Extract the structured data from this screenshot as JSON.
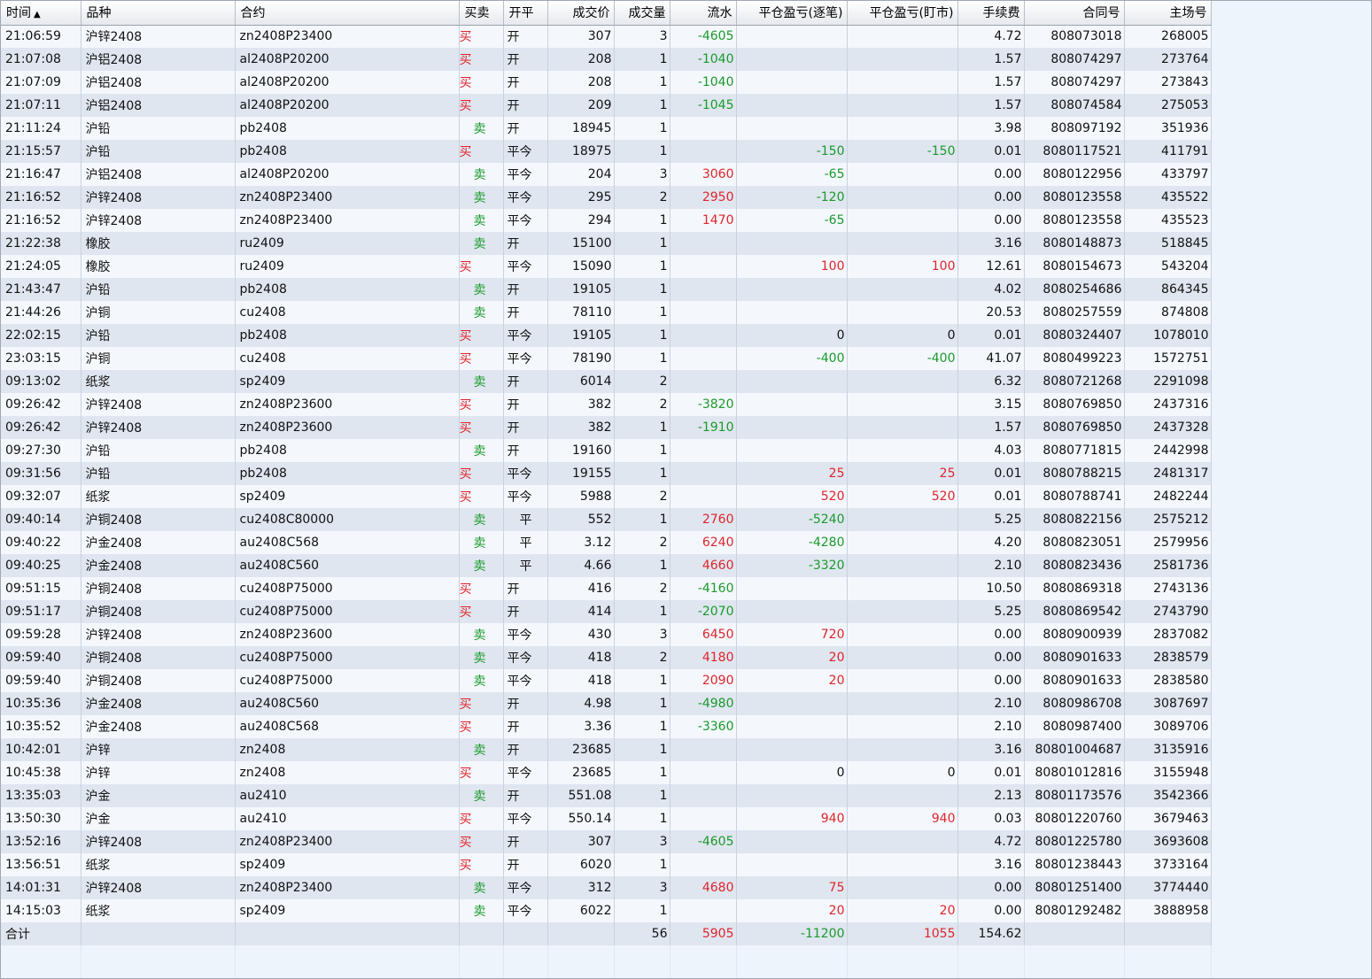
{
  "colors": {
    "buy": "#e0242a",
    "sell": "#1a9a2a",
    "profit": "#e0242a",
    "loss": "#1a9a2a"
  },
  "header": {
    "time": "时间",
    "sort_icon": "▲",
    "product": "品种",
    "contract": "合约",
    "side": "买卖",
    "open_close": "开平",
    "price": "成交价",
    "qty": "成交量",
    "flow": "流水",
    "pnl_trade": "平仓盈亏(逐笔)",
    "pnl_mtm": "平仓盈亏(盯市)",
    "fee": "手续费",
    "contract_no": "合同号",
    "exch_no": "主场号"
  },
  "rows": [
    {
      "time": "21:06:59",
      "product": "沪锌2408",
      "contract": "zn2408P23400",
      "side": "买",
      "oc": "开",
      "price": "307",
      "qty": "3",
      "flow": "-4605",
      "pnl_trade": "",
      "pnl_mtm": "",
      "fee": "4.72",
      "contract_no": "808073018",
      "exch_no": "268005"
    },
    {
      "time": "21:07:08",
      "product": "沪铝2408",
      "contract": "al2408P20200",
      "side": "买",
      "oc": "开",
      "price": "208",
      "qty": "1",
      "flow": "-1040",
      "pnl_trade": "",
      "pnl_mtm": "",
      "fee": "1.57",
      "contract_no": "808074297",
      "exch_no": "273764"
    },
    {
      "time": "21:07:09",
      "product": "沪铝2408",
      "contract": "al2408P20200",
      "side": "买",
      "oc": "开",
      "price": "208",
      "qty": "1",
      "flow": "-1040",
      "pnl_trade": "",
      "pnl_mtm": "",
      "fee": "1.57",
      "contract_no": "808074297",
      "exch_no": "273843"
    },
    {
      "time": "21:07:11",
      "product": "沪铝2408",
      "contract": "al2408P20200",
      "side": "买",
      "oc": "开",
      "price": "209",
      "qty": "1",
      "flow": "-1045",
      "pnl_trade": "",
      "pnl_mtm": "",
      "fee": "1.57",
      "contract_no": "808074584",
      "exch_no": "275053"
    },
    {
      "time": "21:11:24",
      "product": "沪铅",
      "contract": "pb2408",
      "side": "卖",
      "oc": "开",
      "price": "18945",
      "qty": "1",
      "flow": "",
      "pnl_trade": "",
      "pnl_mtm": "",
      "fee": "3.98",
      "contract_no": "808097192",
      "exch_no": "351936"
    },
    {
      "time": "21:15:57",
      "product": "沪铅",
      "contract": "pb2408",
      "side": "买",
      "oc": "平今",
      "price": "18975",
      "qty": "1",
      "flow": "",
      "pnl_trade": "-150",
      "pnl_mtm": "-150",
      "fee": "0.01",
      "contract_no": "8080117521",
      "exch_no": "411791"
    },
    {
      "time": "21:16:47",
      "product": "沪铝2408",
      "contract": "al2408P20200",
      "side": "卖",
      "oc": "平今",
      "price": "204",
      "qty": "3",
      "flow": "3060",
      "pnl_trade": "-65",
      "pnl_mtm": "",
      "fee": "0.00",
      "contract_no": "8080122956",
      "exch_no": "433797"
    },
    {
      "time": "21:16:52",
      "product": "沪锌2408",
      "contract": "zn2408P23400",
      "side": "卖",
      "oc": "平今",
      "price": "295",
      "qty": "2",
      "flow": "2950",
      "pnl_trade": "-120",
      "pnl_mtm": "",
      "fee": "0.00",
      "contract_no": "8080123558",
      "exch_no": "435522"
    },
    {
      "time": "21:16:52",
      "product": "沪锌2408",
      "contract": "zn2408P23400",
      "side": "卖",
      "oc": "平今",
      "price": "294",
      "qty": "1",
      "flow": "1470",
      "pnl_trade": "-65",
      "pnl_mtm": "",
      "fee": "0.00",
      "contract_no": "8080123558",
      "exch_no": "435523"
    },
    {
      "time": "21:22:38",
      "product": "橡胶",
      "contract": "ru2409",
      "side": "卖",
      "oc": "开",
      "price": "15100",
      "qty": "1",
      "flow": "",
      "pnl_trade": "",
      "pnl_mtm": "",
      "fee": "3.16",
      "contract_no": "8080148873",
      "exch_no": "518845"
    },
    {
      "time": "21:24:05",
      "product": "橡胶",
      "contract": "ru2409",
      "side": "买",
      "oc": "平今",
      "price": "15090",
      "qty": "1",
      "flow": "",
      "pnl_trade": "100",
      "pnl_mtm": "100",
      "fee": "12.61",
      "contract_no": "8080154673",
      "exch_no": "543204"
    },
    {
      "time": "21:43:47",
      "product": "沪铅",
      "contract": "pb2408",
      "side": "卖",
      "oc": "开",
      "price": "19105",
      "qty": "1",
      "flow": "",
      "pnl_trade": "",
      "pnl_mtm": "",
      "fee": "4.02",
      "contract_no": "8080254686",
      "exch_no": "864345"
    },
    {
      "time": "21:44:26",
      "product": "沪铜",
      "contract": "cu2408",
      "side": "卖",
      "oc": "开",
      "price": "78110",
      "qty": "1",
      "flow": "",
      "pnl_trade": "",
      "pnl_mtm": "",
      "fee": "20.53",
      "contract_no": "8080257559",
      "exch_no": "874808"
    },
    {
      "time": "22:02:15",
      "product": "沪铅",
      "contract": "pb2408",
      "side": "买",
      "oc": "平今",
      "price": "19105",
      "qty": "1",
      "flow": "",
      "pnl_trade": "0",
      "pnl_mtm": "0",
      "fee": "0.01",
      "contract_no": "8080324407",
      "exch_no": "1078010"
    },
    {
      "time": "23:03:15",
      "product": "沪铜",
      "contract": "cu2408",
      "side": "买",
      "oc": "平今",
      "price": "78190",
      "qty": "1",
      "flow": "",
      "pnl_trade": "-400",
      "pnl_mtm": "-400",
      "fee": "41.07",
      "contract_no": "8080499223",
      "exch_no": "1572751"
    },
    {
      "time": "09:13:02",
      "product": "纸浆",
      "contract": "sp2409",
      "side": "卖",
      "oc": "开",
      "price": "6014",
      "qty": "2",
      "flow": "",
      "pnl_trade": "",
      "pnl_mtm": "",
      "fee": "6.32",
      "contract_no": "8080721268",
      "exch_no": "2291098"
    },
    {
      "time": "09:26:42",
      "product": "沪锌2408",
      "contract": "zn2408P23600",
      "side": "买",
      "oc": "开",
      "price": "382",
      "qty": "2",
      "flow": "-3820",
      "pnl_trade": "",
      "pnl_mtm": "",
      "fee": "3.15",
      "contract_no": "8080769850",
      "exch_no": "2437316"
    },
    {
      "time": "09:26:42",
      "product": "沪锌2408",
      "contract": "zn2408P23600",
      "side": "买",
      "oc": "开",
      "price": "382",
      "qty": "1",
      "flow": "-1910",
      "pnl_trade": "",
      "pnl_mtm": "",
      "fee": "1.57",
      "contract_no": "8080769850",
      "exch_no": "2437328"
    },
    {
      "time": "09:27:30",
      "product": "沪铅",
      "contract": "pb2408",
      "side": "卖",
      "oc": "开",
      "price": "19160",
      "qty": "1",
      "flow": "",
      "pnl_trade": "",
      "pnl_mtm": "",
      "fee": "4.03",
      "contract_no": "8080771815",
      "exch_no": "2442998"
    },
    {
      "time": "09:31:56",
      "product": "沪铅",
      "contract": "pb2408",
      "side": "买",
      "oc": "平今",
      "price": "19155",
      "qty": "1",
      "flow": "",
      "pnl_trade": "25",
      "pnl_mtm": "25",
      "fee": "0.01",
      "contract_no": "8080788215",
      "exch_no": "2481317"
    },
    {
      "time": "09:32:07",
      "product": "纸浆",
      "contract": "sp2409",
      "side": "买",
      "oc": "平今",
      "price": "5988",
      "qty": "2",
      "flow": "",
      "pnl_trade": "520",
      "pnl_mtm": "520",
      "fee": "0.01",
      "contract_no": "8080788741",
      "exch_no": "2482244"
    },
    {
      "time": "09:40:14",
      "product": "沪铜2408",
      "contract": "cu2408C80000",
      "side": "卖",
      "oc": "平",
      "price": "552",
      "qty": "1",
      "flow": "2760",
      "pnl_trade": "-5240",
      "pnl_mtm": "",
      "fee": "5.25",
      "contract_no": "8080822156",
      "exch_no": "2575212"
    },
    {
      "time": "09:40:22",
      "product": "沪金2408",
      "contract": "au2408C568",
      "side": "卖",
      "oc": "平",
      "price": "3.12",
      "qty": "2",
      "flow": "6240",
      "pnl_trade": "-4280",
      "pnl_mtm": "",
      "fee": "4.20",
      "contract_no": "8080823051",
      "exch_no": "2579956"
    },
    {
      "time": "09:40:25",
      "product": "沪金2408",
      "contract": "au2408C560",
      "side": "卖",
      "oc": "平",
      "price": "4.66",
      "qty": "1",
      "flow": "4660",
      "pnl_trade": "-3320",
      "pnl_mtm": "",
      "fee": "2.10",
      "contract_no": "8080823436",
      "exch_no": "2581736"
    },
    {
      "time": "09:51:15",
      "product": "沪铜2408",
      "contract": "cu2408P75000",
      "side": "买",
      "oc": "开",
      "price": "416",
      "qty": "2",
      "flow": "-4160",
      "pnl_trade": "",
      "pnl_mtm": "",
      "fee": "10.50",
      "contract_no": "8080869318",
      "exch_no": "2743136"
    },
    {
      "time": "09:51:17",
      "product": "沪铜2408",
      "contract": "cu2408P75000",
      "side": "买",
      "oc": "开",
      "price": "414",
      "qty": "1",
      "flow": "-2070",
      "pnl_trade": "",
      "pnl_mtm": "",
      "fee": "5.25",
      "contract_no": "8080869542",
      "exch_no": "2743790"
    },
    {
      "time": "09:59:28",
      "product": "沪锌2408",
      "contract": "zn2408P23600",
      "side": "卖",
      "oc": "平今",
      "price": "430",
      "qty": "3",
      "flow": "6450",
      "pnl_trade": "720",
      "pnl_mtm": "",
      "fee": "0.00",
      "contract_no": "8080900939",
      "exch_no": "2837082"
    },
    {
      "time": "09:59:40",
      "product": "沪铜2408",
      "contract": "cu2408P75000",
      "side": "卖",
      "oc": "平今",
      "price": "418",
      "qty": "2",
      "flow": "4180",
      "pnl_trade": "20",
      "pnl_mtm": "",
      "fee": "0.00",
      "contract_no": "8080901633",
      "exch_no": "2838579"
    },
    {
      "time": "09:59:40",
      "product": "沪铜2408",
      "contract": "cu2408P75000",
      "side": "卖",
      "oc": "平今",
      "price": "418",
      "qty": "1",
      "flow": "2090",
      "pnl_trade": "20",
      "pnl_mtm": "",
      "fee": "0.00",
      "contract_no": "8080901633",
      "exch_no": "2838580"
    },
    {
      "time": "10:35:36",
      "product": "沪金2408",
      "contract": "au2408C560",
      "side": "买",
      "oc": "开",
      "price": "4.98",
      "qty": "1",
      "flow": "-4980",
      "pnl_trade": "",
      "pnl_mtm": "",
      "fee": "2.10",
      "contract_no": "8080986708",
      "exch_no": "3087697"
    },
    {
      "time": "10:35:52",
      "product": "沪金2408",
      "contract": "au2408C568",
      "side": "买",
      "oc": "开",
      "price": "3.36",
      "qty": "1",
      "flow": "-3360",
      "pnl_trade": "",
      "pnl_mtm": "",
      "fee": "2.10",
      "contract_no": "8080987400",
      "exch_no": "3089706"
    },
    {
      "time": "10:42:01",
      "product": "沪锌",
      "contract": "zn2408",
      "side": "卖",
      "oc": "开",
      "price": "23685",
      "qty": "1",
      "flow": "",
      "pnl_trade": "",
      "pnl_mtm": "",
      "fee": "3.16",
      "contract_no": "80801004687",
      "exch_no": "3135916"
    },
    {
      "time": "10:45:38",
      "product": "沪锌",
      "contract": "zn2408",
      "side": "买",
      "oc": "平今",
      "price": "23685",
      "qty": "1",
      "flow": "",
      "pnl_trade": "0",
      "pnl_mtm": "0",
      "fee": "0.01",
      "contract_no": "80801012816",
      "exch_no": "3155948"
    },
    {
      "time": "13:35:03",
      "product": "沪金",
      "contract": "au2410",
      "side": "卖",
      "oc": "开",
      "price": "551.08",
      "qty": "1",
      "flow": "",
      "pnl_trade": "",
      "pnl_mtm": "",
      "fee": "2.13",
      "contract_no": "80801173576",
      "exch_no": "3542366"
    },
    {
      "time": "13:50:30",
      "product": "沪金",
      "contract": "au2410",
      "side": "买",
      "oc": "平今",
      "price": "550.14",
      "qty": "1",
      "flow": "",
      "pnl_trade": "940",
      "pnl_mtm": "940",
      "fee": "0.03",
      "contract_no": "80801220760",
      "exch_no": "3679463"
    },
    {
      "time": "13:52:16",
      "product": "沪锌2408",
      "contract": "zn2408P23400",
      "side": "买",
      "oc": "开",
      "price": "307",
      "qty": "3",
      "flow": "-4605",
      "pnl_trade": "",
      "pnl_mtm": "",
      "fee": "4.72",
      "contract_no": "80801225780",
      "exch_no": "3693608"
    },
    {
      "time": "13:56:51",
      "product": "纸浆",
      "contract": "sp2409",
      "side": "买",
      "oc": "开",
      "price": "6020",
      "qty": "1",
      "flow": "",
      "pnl_trade": "",
      "pnl_mtm": "",
      "fee": "3.16",
      "contract_no": "80801238443",
      "exch_no": "3733164"
    },
    {
      "time": "14:01:31",
      "product": "沪锌2408",
      "contract": "zn2408P23400",
      "side": "卖",
      "oc": "平今",
      "price": "312",
      "qty": "3",
      "flow": "4680",
      "pnl_trade": "75",
      "pnl_mtm": "",
      "fee": "0.00",
      "contract_no": "80801251400",
      "exch_no": "3774440"
    },
    {
      "time": "14:15:03",
      "product": "纸浆",
      "contract": "sp2409",
      "side": "卖",
      "oc": "平今",
      "price": "6022",
      "qty": "1",
      "flow": "",
      "pnl_trade": "20",
      "pnl_mtm": "20",
      "fee": "0.00",
      "contract_no": "80801292482",
      "exch_no": "3888958"
    }
  ],
  "total": {
    "label": "合计",
    "qty": "56",
    "flow": "5905",
    "pnl_trade": "-11200",
    "pnl_mtm": "1055",
    "fee": "154.62"
  }
}
